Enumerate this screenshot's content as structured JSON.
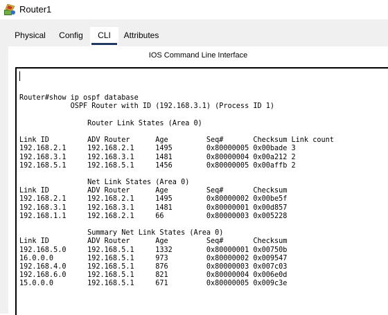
{
  "window": {
    "title": "Router1"
  },
  "tabs": [
    {
      "label": "Physical"
    },
    {
      "label": "Config"
    },
    {
      "label": "CLI"
    },
    {
      "label": "Attributes"
    }
  ],
  "cli": {
    "header": "IOS Command Line Interface",
    "lines": [
      "",
      "Router#show ip ospf database",
      "            OSPF Router with ID (192.168.3.1) (Process ID 1)",
      "",
      "                Router Link States (Area 0)",
      "",
      "Link ID         ADV Router      Age         Seq#       Checksum Link count",
      "192.168.2.1     192.168.2.1     1495        0x80000005 0x00bade 3",
      "192.168.3.1     192.168.3.1     1481        0x80000004 0x00a212 2",
      "192.168.5.1     192.168.5.1     1456        0x80000005 0x00affb 2",
      "",
      "                Net Link States (Area 0)",
      "Link ID         ADV Router      Age         Seq#       Checksum",
      "192.168.2.1     192.168.2.1     1495        0x80000002 0x00be5f",
      "192.168.3.1     192.168.3.1     1481        0x80000001 0x00d857",
      "192.168.1.1     192.168.2.1     66          0x80000003 0x005228",
      "",
      "                Summary Net Link States (Area 0)",
      "Link ID         ADV Router      Age         Seq#       Checksum",
      "192.168.5.0     192.168.5.1     1332        0x80000001 0x00750b",
      "16.0.0.0        192.168.5.1     973         0x80000002 0x009547",
      "192.168.4.0     192.168.5.1     876         0x80000003 0x007c03",
      "192.168.6.0     192.168.5.1     821         0x80000004 0x006e0d",
      "15.0.0.0        192.168.5.1     671         0x80000005 0x009c3e"
    ]
  }
}
